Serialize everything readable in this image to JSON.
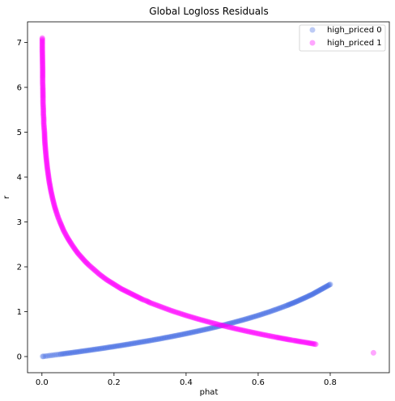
{
  "chart_data": {
    "type": "scatter",
    "title": "Global Logloss Residuals",
    "xlabel": "phat",
    "ylabel": "r",
    "xlim": [
      -0.04,
      0.964
    ],
    "ylim": [
      -0.36,
      7.46
    ],
    "xticks": [
      0.0,
      0.2,
      0.4,
      0.6,
      0.8
    ],
    "xtick_labels": [
      "0.0",
      "0.2",
      "0.4",
      "0.6",
      "0.8"
    ],
    "yticks": [
      0,
      1,
      2,
      3,
      4,
      5,
      6,
      7
    ],
    "ytick_labels": [
      "0",
      "1",
      "2",
      "3",
      "4",
      "5",
      "6",
      "7"
    ],
    "grid": false,
    "legend_position": "top-right",
    "series": [
      {
        "name": "high_priced 0",
        "color": "#4169e1",
        "points": [
          [
            0.002,
            0.002
          ],
          [
            0.005,
            0.005
          ],
          [
            0.01,
            0.01
          ],
          [
            0.015,
            0.015
          ],
          [
            0.02,
            0.02
          ],
          [
            0.025,
            0.025
          ],
          [
            0.03,
            0.03
          ],
          [
            0.035,
            0.036
          ],
          [
            0.04,
            0.041
          ],
          [
            0.045,
            0.046
          ],
          [
            0.05,
            0.051
          ],
          [
            0.06,
            0.062
          ],
          [
            0.07,
            0.073
          ],
          [
            0.08,
            0.083
          ],
          [
            0.09,
            0.094
          ],
          [
            0.1,
            0.105
          ],
          [
            0.11,
            0.117
          ],
          [
            0.12,
            0.128
          ],
          [
            0.13,
            0.139
          ],
          [
            0.14,
            0.151
          ],
          [
            0.15,
            0.163
          ],
          [
            0.16,
            0.174
          ],
          [
            0.17,
            0.186
          ],
          [
            0.18,
            0.198
          ],
          [
            0.19,
            0.211
          ],
          [
            0.2,
            0.223
          ],
          [
            0.21,
            0.236
          ],
          [
            0.22,
            0.248
          ],
          [
            0.23,
            0.261
          ],
          [
            0.24,
            0.274
          ],
          [
            0.25,
            0.288
          ],
          [
            0.26,
            0.301
          ],
          [
            0.27,
            0.315
          ],
          [
            0.28,
            0.329
          ],
          [
            0.29,
            0.342
          ],
          [
            0.3,
            0.357
          ],
          [
            0.31,
            0.371
          ],
          [
            0.32,
            0.386
          ],
          [
            0.33,
            0.4
          ],
          [
            0.34,
            0.416
          ],
          [
            0.35,
            0.431
          ],
          [
            0.36,
            0.446
          ],
          [
            0.37,
            0.462
          ],
          [
            0.38,
            0.478
          ],
          [
            0.39,
            0.494
          ],
          [
            0.4,
            0.511
          ],
          [
            0.41,
            0.528
          ],
          [
            0.42,
            0.545
          ],
          [
            0.43,
            0.562
          ],
          [
            0.44,
            0.58
          ],
          [
            0.45,
            0.598
          ],
          [
            0.46,
            0.616
          ],
          [
            0.47,
            0.635
          ],
          [
            0.48,
            0.654
          ],
          [
            0.49,
            0.673
          ],
          [
            0.5,
            0.693
          ],
          [
            0.51,
            0.713
          ],
          [
            0.52,
            0.734
          ],
          [
            0.53,
            0.755
          ],
          [
            0.54,
            0.777
          ],
          [
            0.55,
            0.799
          ],
          [
            0.56,
            0.821
          ],
          [
            0.57,
            0.844
          ],
          [
            0.58,
            0.868
          ],
          [
            0.59,
            0.892
          ],
          [
            0.6,
            0.916
          ],
          [
            0.61,
            0.942
          ],
          [
            0.62,
            0.968
          ],
          [
            0.63,
            0.994
          ],
          [
            0.64,
            1.022
          ],
          [
            0.65,
            1.05
          ],
          [
            0.66,
            1.079
          ],
          [
            0.67,
            1.109
          ],
          [
            0.68,
            1.139
          ],
          [
            0.7,
            1.204
          ],
          [
            0.71,
            1.238
          ],
          [
            0.735,
            1.33
          ],
          [
            0.75,
            1.386
          ],
          [
            0.8,
            1.609
          ]
        ]
      },
      {
        "name": "high_priced 1",
        "color": "#ff00ff",
        "points": [
          [
            0.001,
            7.1
          ],
          [
            0.001,
            6.85
          ],
          [
            0.002,
            6.4
          ],
          [
            0.002,
            6.2
          ],
          [
            0.002,
            6.1
          ],
          [
            0.0025,
            6.0
          ],
          [
            0.003,
            5.75
          ],
          [
            0.003,
            5.65
          ],
          [
            0.004,
            5.5
          ],
          [
            0.004,
            5.4
          ],
          [
            0.005,
            5.3
          ],
          [
            0.005,
            5.2
          ],
          [
            0.006,
            5.1
          ],
          [
            0.007,
            5.0
          ],
          [
            0.008,
            4.8
          ],
          [
            0.01,
            4.6
          ],
          [
            0.012,
            4.42
          ],
          [
            0.015,
            4.2
          ],
          [
            0.02,
            3.91
          ],
          [
            0.025,
            3.69
          ],
          [
            0.03,
            3.51
          ],
          [
            0.035,
            3.35
          ],
          [
            0.04,
            3.22
          ],
          [
            0.045,
            3.1
          ],
          [
            0.05,
            3.0
          ],
          [
            0.06,
            2.81
          ],
          [
            0.07,
            2.66
          ],
          [
            0.08,
            2.53
          ],
          [
            0.09,
            2.41
          ],
          [
            0.1,
            2.3
          ],
          [
            0.11,
            2.21
          ],
          [
            0.12,
            2.12
          ],
          [
            0.13,
            2.04
          ],
          [
            0.14,
            1.97
          ],
          [
            0.15,
            1.9
          ],
          [
            0.16,
            1.83
          ],
          [
            0.17,
            1.77
          ],
          [
            0.18,
            1.71
          ],
          [
            0.19,
            1.66
          ],
          [
            0.2,
            1.61
          ],
          [
            0.21,
            1.56
          ],
          [
            0.22,
            1.51
          ],
          [
            0.23,
            1.47
          ],
          [
            0.24,
            1.43
          ],
          [
            0.25,
            1.39
          ],
          [
            0.26,
            1.35
          ],
          [
            0.27,
            1.31
          ],
          [
            0.28,
            1.27
          ],
          [
            0.29,
            1.24
          ],
          [
            0.3,
            1.2
          ],
          [
            0.31,
            1.17
          ],
          [
            0.32,
            1.14
          ],
          [
            0.33,
            1.11
          ],
          [
            0.34,
            1.08
          ],
          [
            0.35,
            1.05
          ],
          [
            0.36,
            1.02
          ],
          [
            0.37,
            0.994
          ],
          [
            0.38,
            0.968
          ],
          [
            0.39,
            0.942
          ],
          [
            0.4,
            0.916
          ],
          [
            0.41,
            0.892
          ],
          [
            0.42,
            0.868
          ],
          [
            0.43,
            0.844
          ],
          [
            0.44,
            0.821
          ],
          [
            0.45,
            0.799
          ],
          [
            0.46,
            0.777
          ],
          [
            0.47,
            0.755
          ],
          [
            0.48,
            0.734
          ],
          [
            0.49,
            0.713
          ],
          [
            0.5,
            0.693
          ],
          [
            0.51,
            0.673
          ],
          [
            0.52,
            0.654
          ],
          [
            0.53,
            0.635
          ],
          [
            0.54,
            0.616
          ],
          [
            0.55,
            0.598
          ],
          [
            0.56,
            0.58
          ],
          [
            0.57,
            0.562
          ],
          [
            0.58,
            0.545
          ],
          [
            0.59,
            0.528
          ],
          [
            0.6,
            0.511
          ],
          [
            0.61,
            0.494
          ],
          [
            0.62,
            0.478
          ],
          [
            0.63,
            0.462
          ],
          [
            0.64,
            0.446
          ],
          [
            0.65,
            0.431
          ],
          [
            0.67,
            0.4
          ],
          [
            0.69,
            0.371
          ],
          [
            0.7,
            0.357
          ],
          [
            0.72,
            0.329
          ],
          [
            0.735,
            0.31
          ],
          [
            0.76,
            0.274
          ],
          [
            0.92,
            0.083
          ]
        ]
      }
    ]
  }
}
